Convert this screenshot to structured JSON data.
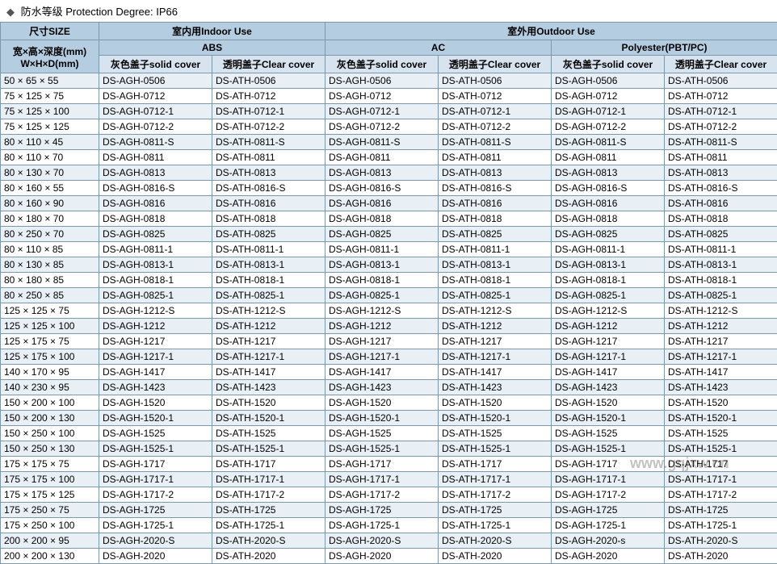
{
  "title": {
    "diamond": "◆",
    "text": "防水等级 Protection Degree: IP66"
  },
  "header": {
    "size": "尺寸SIZE",
    "indoor": "室内用Indoor Use",
    "outdoor": "室外用Outdoor Use",
    "sizeSub": "宽×高×深度(mm)\nW×H×D(mm)",
    "abs": "ABS",
    "ac": "AC",
    "poly": "Polyester(PBT/PC)",
    "solid": "灰色盖子solid cover",
    "clear": "透明盖子Clear cover"
  },
  "sizes": [
    "50 × 65 × 55",
    "75 × 125 × 75",
    "75 × 125 × 100",
    "75 × 125 × 125",
    "80 × 110 × 45",
    "80 × 110 × 70",
    "80 × 130 × 70",
    "80 × 160 × 55",
    "80 × 160 × 90",
    "80 × 180 × 70",
    "80 × 250 × 70",
    "80 × 110 × 85",
    "80 × 130 × 85",
    "80 × 180 × 85",
    "80 × 250 × 85",
    "125 × 125 × 75",
    "125 × 125 × 100",
    "125 × 175 × 75",
    "125 × 175 × 100",
    "140 × 170 × 95",
    "140 × 230 ×  95",
    "150 × 200 × 100",
    "150 × 200 × 130",
    "150 × 250 × 100",
    "150 × 250 × 130",
    "175 × 175 × 75",
    "175 × 175 × 100",
    "175 × 175 × 125",
    "175 × 250 × 75",
    "175 × 250 × 100",
    "200 × 200 × 95",
    "200 × 200 × 130"
  ],
  "codes": [
    "0506",
    "0712",
    "0712-1",
    "0712-2",
    "0811-S",
    "0811",
    "0813",
    "0816-S",
    "0816",
    "0818",
    "0825",
    "0811-1",
    "0813-1",
    "0818-1",
    "0825-1",
    "1212-S",
    "1212",
    "1217",
    "1217-1",
    "1417",
    "1423",
    "1520",
    "1520-1",
    "1525",
    "1525-1",
    "1717",
    "1717-1",
    "1717-2",
    "1725",
    "1725-1",
    "2020-S",
    "2020"
  ],
  "prefixSolid": "DS-AGH-",
  "prefixClear": "DS-ATH-",
  "special": {
    "30_5": "DS-AGH-2020-s"
  },
  "watermark": "www.gqjxw.cn",
  "colors": {
    "border": "#7d98a8",
    "header1": "#b4cde0",
    "header2": "#d7e4ef",
    "rowEven": "#e8eff5",
    "rowOdd": "#ffffff"
  }
}
